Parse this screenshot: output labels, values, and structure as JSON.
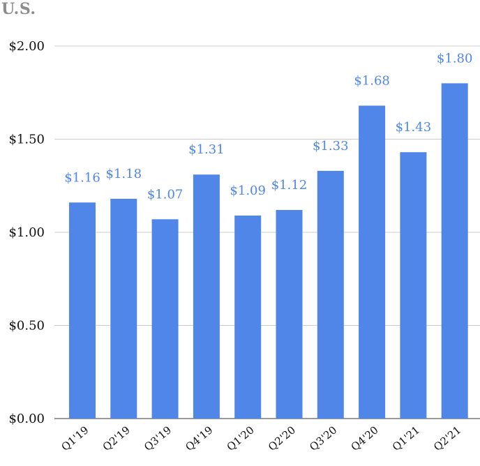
{
  "chart_data": {
    "type": "bar",
    "title": "U.S.",
    "xlabel": "",
    "ylabel": "",
    "categories": [
      "Q1'19",
      "Q2'19",
      "Q3'19",
      "Q4'19",
      "Q1'20",
      "Q2'20",
      "Q3'20",
      "Q4'20",
      "Q1'21",
      "Q2'21"
    ],
    "values": [
      1.16,
      1.18,
      1.07,
      1.31,
      1.09,
      1.12,
      1.33,
      1.68,
      1.43,
      1.8
    ],
    "data_labels": [
      "$1.16",
      "$1.18",
      "$1.07",
      "$1.31",
      "$1.09",
      "$1.12",
      "$1.33",
      "$1.68",
      "$1.43",
      "$1.80"
    ],
    "yticks": [
      0,
      0.5,
      1.0,
      1.5,
      2.0
    ],
    "ytick_labels": [
      "$0.00",
      "$0.50",
      "$1.00",
      "$1.50",
      "$2.00"
    ],
    "ylim": [
      0,
      2.0
    ],
    "grid": true,
    "bar_color": "#4f86e8",
    "label_color": "#4f86e8",
    "grid_color": "#cccccc"
  }
}
